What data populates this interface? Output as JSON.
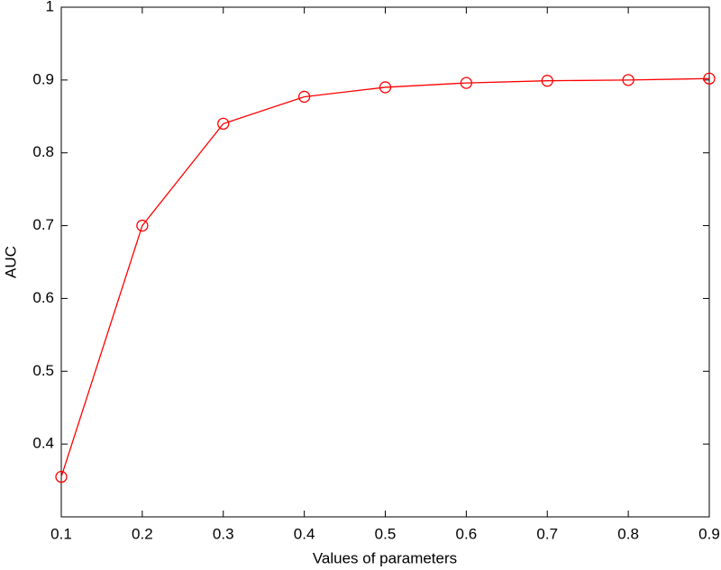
{
  "chart_data": {
    "type": "line",
    "x_label": "Values of parameters",
    "y_label": "AUC",
    "x": [
      0.1,
      0.2,
      0.3,
      0.4,
      0.5,
      0.6,
      0.7,
      0.8,
      0.9
    ],
    "values": [
      0.355,
      0.7,
      0.84,
      0.877,
      0.89,
      0.896,
      0.899,
      0.9,
      0.902
    ],
    "color": "#ff0000",
    "xlim": [
      0.1,
      0.9
    ],
    "xticks": [
      0.1,
      0.2,
      0.3,
      0.4,
      0.5,
      0.6,
      0.7,
      0.8,
      0.9
    ],
    "ylim": [
      0.3,
      1
    ],
    "yticks": [
      0.4,
      0.5,
      0.6,
      0.7,
      0.8,
      0.9,
      1
    ],
    "grid": false
  }
}
